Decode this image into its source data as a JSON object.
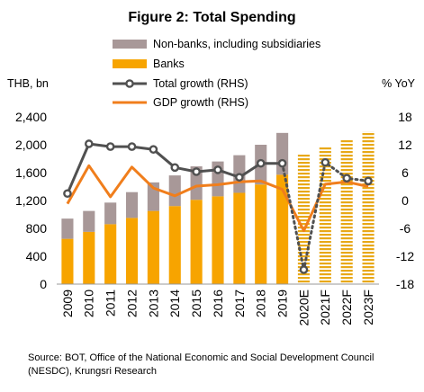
{
  "colors": {
    "nonbanks": "#a89898",
    "banks": "#f7a400",
    "forecast_stripe": "#e8a817",
    "total_growth": "#505050",
    "gdp_growth": "#f07e1c"
  },
  "chart_data": {
    "type": "bar",
    "title": "Figure 2: Total Spending",
    "ylabel_left": "THB, bn",
    "ylabel_right": "% YoY",
    "ylim_left": [
      0,
      2400
    ],
    "ylim_right": [
      -18,
      18
    ],
    "yticks_left": [
      "0",
      "400",
      "800",
      "1,200",
      "1,600",
      "2,000",
      "2,400"
    ],
    "yticks_right": [
      "-18",
      "-12",
      "-6",
      "0",
      "6",
      "12",
      "18"
    ],
    "categories": [
      "2009",
      "2010",
      "2011",
      "2012",
      "2013",
      "2014",
      "2015",
      "2016",
      "2017",
      "2018",
      "2019",
      "2020E",
      "2021F",
      "2022F",
      "2023F"
    ],
    "forecast_from_index": 11,
    "series": [
      {
        "name": "Non-banks, including subsidiaries",
        "type": "stacked-bar",
        "values": [
          290,
          300,
          310,
          370,
          410,
          440,
          480,
          500,
          540,
          570,
          600,
          null,
          null,
          null,
          null
        ]
      },
      {
        "name": "Banks",
        "type": "stacked-bar",
        "values": [
          650,
          750,
          860,
          950,
          1050,
          1120,
          1210,
          1260,
          1310,
          1430,
          1570,
          null,
          null,
          null,
          null
        ]
      },
      {
        "name": "Total spending (forecast)",
        "type": "forecast-bar",
        "values": [
          null,
          null,
          null,
          null,
          null,
          null,
          null,
          null,
          null,
          null,
          null,
          1870,
          1980,
          2080,
          2190
        ]
      },
      {
        "name": "Total growth (RHS)",
        "type": "line-marker",
        "values": [
          1.5,
          12.2,
          11.6,
          11.6,
          11.0,
          7.1,
          6.2,
          6.6,
          5.0,
          8.0,
          8.0,
          -14.9,
          8.2,
          4.8,
          4.2
        ]
      },
      {
        "name": "GDP growth (RHS)",
        "type": "line",
        "values": [
          -0.7,
          7.5,
          0.8,
          7.2,
          2.7,
          1.0,
          3.1,
          3.4,
          4.0,
          4.2,
          2.4,
          -6.5,
          3.5,
          4.0,
          3.0
        ]
      }
    ],
    "legend": {
      "position": "top-center",
      "items": [
        "Non-banks, including subsidiaries",
        "Banks",
        "Total growth (RHS)",
        "GDP growth (RHS)"
      ]
    },
    "grid": false
  },
  "footer": {
    "source_line1": "Source: BOT, Office of the National Economic and Social Development Council",
    "source_line2": "(NESDC), Krungsri Research"
  }
}
